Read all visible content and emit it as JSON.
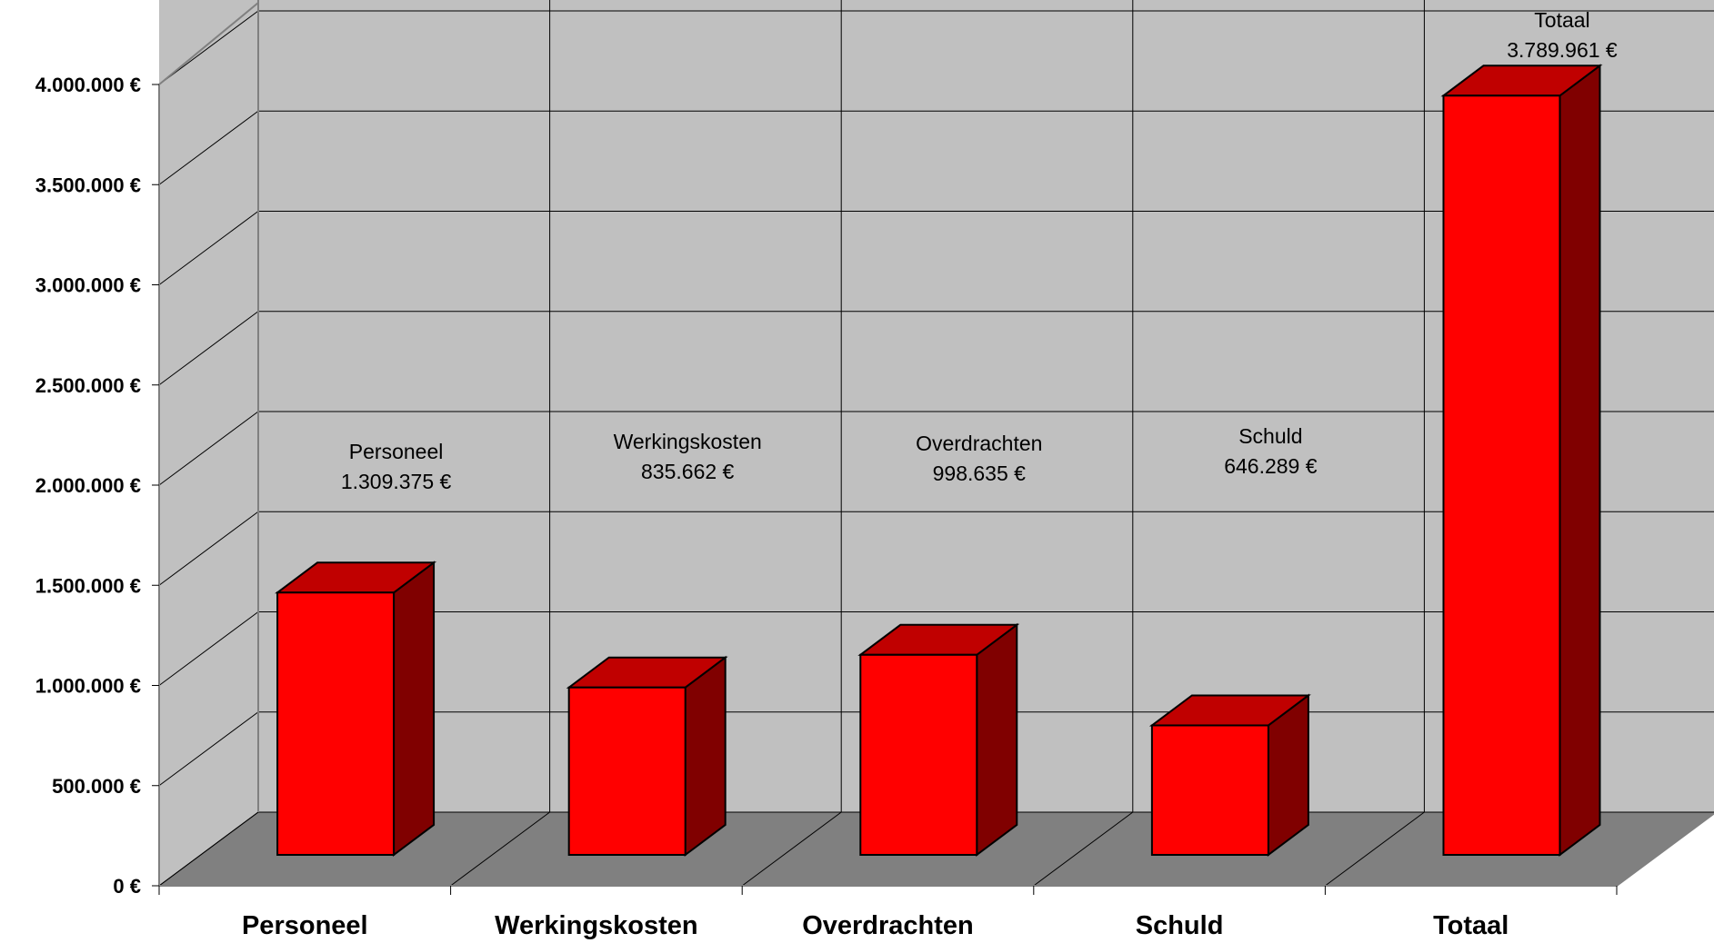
{
  "chart_data": {
    "type": "bar",
    "style": "3d-column",
    "categories": [
      "Personeel",
      "Werkingskosten",
      "Overdrachten",
      "Schuld",
      "Totaal"
    ],
    "values": [
      1309375,
      835662,
      998635,
      646289,
      3789961
    ],
    "data_labels": [
      {
        "name": "Personeel",
        "value": "1.309.375 €"
      },
      {
        "name": "Werkingskosten",
        "value": "835.662 €"
      },
      {
        "name": "Overdrachten",
        "value": "998.635 €"
      },
      {
        "name": "Schuld",
        "value": "646.289 €"
      },
      {
        "name": "Totaal",
        "value": "3.789.961 €"
      }
    ],
    "y_ticks": [
      "0 €",
      "500.000 €",
      "1.000.000 €",
      "1.500.000 €",
      "2.000.000 €",
      "2.500.000 €",
      "3.000.000 €",
      "3.500.000 €",
      "4.000.000 €"
    ],
    "ylim": [
      0,
      4000000
    ],
    "grid": true,
    "title": "",
    "xlabel": "",
    "ylabel": "",
    "colors": {
      "bar_front": "#ff0000",
      "bar_top": "#c00000",
      "bar_side": "#800000",
      "back_wall": "#c0c0c0",
      "floor": "#808080",
      "gridline": "#000000"
    }
  }
}
